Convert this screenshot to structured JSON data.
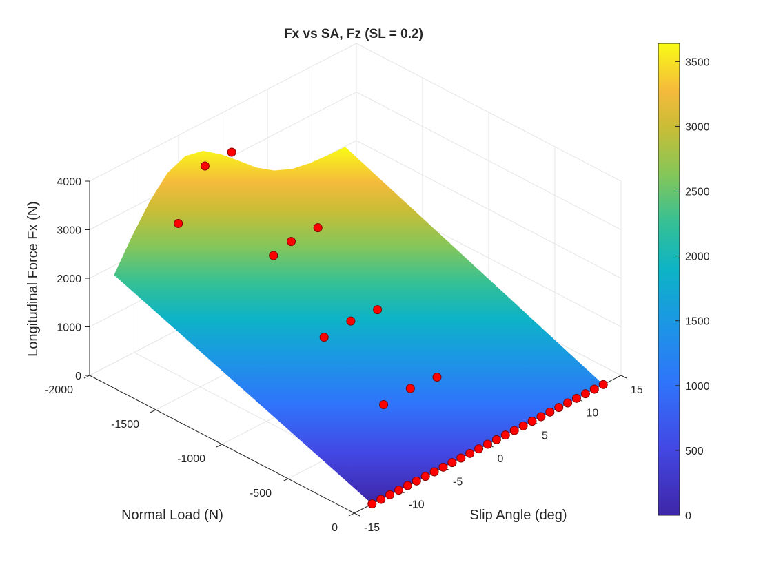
{
  "chart_data": {
    "type": "surface3d",
    "title": "Fx vs SA, Fz (SL = 0.2)",
    "xlabel": "Normal Load (N)",
    "ylabel": "Slip Angle (deg)",
    "zlabel": "Longitudinal Force Fx (N)",
    "x_ticks": [
      -2000,
      -1500,
      -1000,
      -500,
      0
    ],
    "y_ticks": [
      -15,
      -10,
      -5,
      0,
      5,
      10,
      15
    ],
    "z_ticks": [
      0,
      1000,
      2000,
      3000,
      4000
    ],
    "xlim": [
      -2000,
      0
    ],
    "ylim": [
      -15,
      15
    ],
    "zlim": [
      0,
      4000
    ],
    "surface_extent": {
      "fz": [
        -1950,
        0
      ],
      "sa": [
        -13,
        13
      ]
    },
    "surface_profiles": {
      "sa": [
        -13,
        -11,
        -9,
        -7,
        -5,
        -3,
        -1,
        1,
        3,
        5,
        7,
        9,
        11,
        13
      ],
      "edge_fz_min": [
        1950,
        2550,
        3080,
        3480,
        3640,
        3560,
        3300,
        2980,
        2650,
        2400,
        2240,
        2170,
        2140,
        2130
      ],
      "edge_fz_zero": [
        0,
        0,
        0,
        0,
        0,
        0,
        0,
        0,
        0,
        0,
        0,
        0,
        0,
        0
      ]
    },
    "colormap": "parula",
    "colorbar": {
      "ticks": [
        0,
        500,
        1000,
        1500,
        2000,
        2500,
        3000,
        3500
      ],
      "range": [
        0,
        3640
      ]
    },
    "points": [
      {
        "fz": -1800,
        "sa": -5,
        "fx": 3650
      },
      {
        "fz": -1800,
        "sa": -2,
        "fx": 3650
      },
      {
        "fz": -1800,
        "sa": -8,
        "fx": 2750
      },
      {
        "fz": -1350,
        "sa": -2,
        "fx": 2450
      },
      {
        "fz": -1350,
        "sa": 1,
        "fx": 2450
      },
      {
        "fz": -1350,
        "sa": -4,
        "fx": 2350
      },
      {
        "fz": -900,
        "sa": -2,
        "fx": 1450
      },
      {
        "fz": -900,
        "sa": 1,
        "fx": 1400
      },
      {
        "fz": -900,
        "sa": -5,
        "fx": 1400
      },
      {
        "fz": -450,
        "sa": -2,
        "fx": 700
      },
      {
        "fz": -450,
        "sa": 1,
        "fx": 650
      },
      {
        "fz": -450,
        "sa": -5,
        "fx": 650
      }
    ],
    "edge_points": {
      "fz": 0,
      "sa_min": -13,
      "sa_max": 13,
      "count": 27,
      "fx": 0
    },
    "grid": true
  }
}
